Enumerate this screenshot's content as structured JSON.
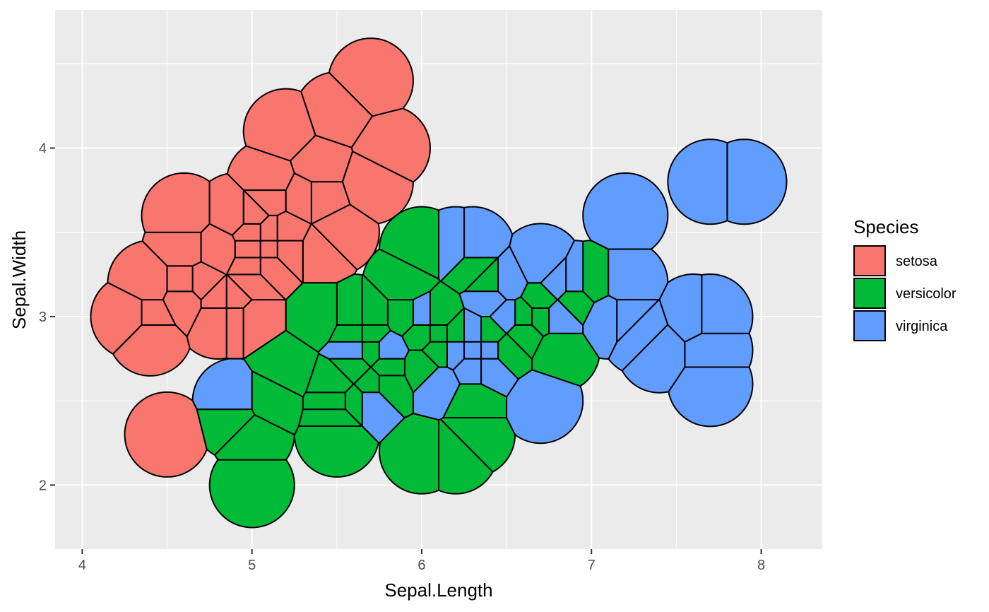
{
  "chart_data": {
    "type": "voronoi",
    "title": "",
    "xlabel": "Sepal.Length",
    "ylabel": "Sepal.Width",
    "xlim": [
      3.84,
      8.36
    ],
    "ylim": [
      1.62,
      4.82
    ],
    "x_ticks": [
      4,
      5,
      6,
      7,
      8
    ],
    "x_tick_labels": [
      "4",
      "5",
      "6",
      "7",
      "8"
    ],
    "y_ticks": [
      2,
      3,
      4
    ],
    "y_tick_labels": [
      "2",
      "3",
      "4"
    ],
    "grid": true,
    "cell_radius": 0.25,
    "legend": {
      "title": "Species",
      "position": "right",
      "entries": [
        {
          "label": "setosa",
          "color": "#F8766D"
        },
        {
          "label": "versicolor",
          "color": "#00BA38"
        },
        {
          "label": "virginica",
          "color": "#619CFF"
        }
      ]
    },
    "series": [
      {
        "name": "setosa",
        "color": "#F8766D",
        "points": [
          [
            5.1,
            3.5
          ],
          [
            4.9,
            3.0
          ],
          [
            4.7,
            3.2
          ],
          [
            4.6,
            3.1
          ],
          [
            5.0,
            3.6
          ],
          [
            5.4,
            3.9
          ],
          [
            4.6,
            3.4
          ],
          [
            5.0,
            3.4
          ],
          [
            4.4,
            2.9
          ],
          [
            4.9,
            3.1
          ],
          [
            5.4,
            3.7
          ],
          [
            4.8,
            3.4
          ],
          [
            4.8,
            3.0
          ],
          [
            4.3,
            3.0
          ],
          [
            5.8,
            4.0
          ],
          [
            5.7,
            4.4
          ],
          [
            5.4,
            3.9
          ],
          [
            5.1,
            3.5
          ],
          [
            5.7,
            3.8
          ],
          [
            5.1,
            3.8
          ],
          [
            5.4,
            3.4
          ],
          [
            5.1,
            3.7
          ],
          [
            4.6,
            3.6
          ],
          [
            5.1,
            3.3
          ],
          [
            4.8,
            3.4
          ],
          [
            5.0,
            3.0
          ],
          [
            5.0,
            3.4
          ],
          [
            5.2,
            3.5
          ],
          [
            5.2,
            3.4
          ],
          [
            4.7,
            3.2
          ],
          [
            4.8,
            3.1
          ],
          [
            5.4,
            3.4
          ],
          [
            5.2,
            4.1
          ],
          [
            5.5,
            4.2
          ],
          [
            4.9,
            3.1
          ],
          [
            5.0,
            3.2
          ],
          [
            5.5,
            3.5
          ],
          [
            4.9,
            3.6
          ],
          [
            4.4,
            3.0
          ],
          [
            5.1,
            3.4
          ],
          [
            5.0,
            3.5
          ],
          [
            4.5,
            2.3
          ],
          [
            4.4,
            3.2
          ],
          [
            5.0,
            3.5
          ],
          [
            5.1,
            3.8
          ],
          [
            4.8,
            3.0
          ],
          [
            5.1,
            3.8
          ],
          [
            4.6,
            3.2
          ],
          [
            5.3,
            3.7
          ],
          [
            5.0,
            3.3
          ]
        ]
      },
      {
        "name": "versicolor",
        "color": "#00BA38",
        "points": [
          [
            7.0,
            3.2
          ],
          [
            6.4,
            3.2
          ],
          [
            6.9,
            3.1
          ],
          [
            5.5,
            2.3
          ],
          [
            6.5,
            2.8
          ],
          [
            5.7,
            2.8
          ],
          [
            6.3,
            3.3
          ],
          [
            4.9,
            2.4
          ],
          [
            6.6,
            2.9
          ],
          [
            5.2,
            2.7
          ],
          [
            5.0,
            2.0
          ],
          [
            5.9,
            3.0
          ],
          [
            6.0,
            2.2
          ],
          [
            6.1,
            2.9
          ],
          [
            5.6,
            2.9
          ],
          [
            6.7,
            3.1
          ],
          [
            5.6,
            3.0
          ],
          [
            5.8,
            2.7
          ],
          [
            6.2,
            2.2
          ],
          [
            5.6,
            2.5
          ],
          [
            5.9,
            3.2
          ],
          [
            6.1,
            2.8
          ],
          [
            6.3,
            2.5
          ],
          [
            6.1,
            2.8
          ],
          [
            6.4,
            2.9
          ],
          [
            6.6,
            3.0
          ],
          [
            6.8,
            2.8
          ],
          [
            6.7,
            3.0
          ],
          [
            6.0,
            2.9
          ],
          [
            5.7,
            2.6
          ],
          [
            5.5,
            2.4
          ],
          [
            5.5,
            2.4
          ],
          [
            5.8,
            2.7
          ],
          [
            6.0,
            2.7
          ],
          [
            5.4,
            3.0
          ],
          [
            6.0,
            3.4
          ],
          [
            6.7,
            3.1
          ],
          [
            6.3,
            2.3
          ],
          [
            5.6,
            3.0
          ],
          [
            5.5,
            2.5
          ],
          [
            5.5,
            2.6
          ],
          [
            6.1,
            3.0
          ],
          [
            5.8,
            2.6
          ],
          [
            5.0,
            2.3
          ],
          [
            5.6,
            2.7
          ],
          [
            5.7,
            3.0
          ],
          [
            5.7,
            2.9
          ],
          [
            6.2,
            2.9
          ],
          [
            5.1,
            2.5
          ],
          [
            5.7,
            2.8
          ]
        ]
      },
      {
        "name": "virginica",
        "color": "#619CFF",
        "points": [
          [
            6.3,
            3.3
          ],
          [
            5.8,
            2.7
          ],
          [
            7.1,
            3.0
          ],
          [
            6.3,
            2.9
          ],
          [
            6.5,
            3.0
          ],
          [
            7.6,
            3.0
          ],
          [
            4.9,
            2.5
          ],
          [
            7.3,
            2.9
          ],
          [
            6.7,
            2.5
          ],
          [
            7.2,
            3.6
          ],
          [
            6.5,
            3.2
          ],
          [
            6.4,
            2.7
          ],
          [
            6.8,
            3.0
          ],
          [
            5.7,
            2.5
          ],
          [
            5.8,
            2.8
          ],
          [
            6.4,
            3.2
          ],
          [
            6.5,
            3.0
          ],
          [
            7.7,
            3.8
          ],
          [
            7.7,
            2.6
          ],
          [
            6.0,
            2.2
          ],
          [
            6.9,
            3.2
          ],
          [
            5.6,
            2.8
          ],
          [
            7.7,
            2.8
          ],
          [
            6.3,
            2.7
          ],
          [
            6.7,
            3.3
          ],
          [
            7.2,
            3.2
          ],
          [
            6.2,
            2.8
          ],
          [
            6.1,
            3.0
          ],
          [
            6.4,
            2.8
          ],
          [
            7.2,
            3.0
          ],
          [
            7.4,
            2.8
          ],
          [
            7.9,
            3.8
          ],
          [
            6.4,
            2.8
          ],
          [
            6.3,
            2.8
          ],
          [
            6.1,
            2.6
          ],
          [
            7.7,
            3.0
          ],
          [
            6.3,
            3.4
          ],
          [
            6.4,
            3.1
          ],
          [
            6.0,
            3.0
          ],
          [
            6.9,
            3.1
          ],
          [
            6.7,
            3.1
          ],
          [
            6.9,
            3.1
          ],
          [
            5.8,
            2.7
          ],
          [
            6.8,
            3.2
          ],
          [
            6.7,
            3.3
          ],
          [
            6.7,
            3.0
          ],
          [
            6.3,
            2.5
          ],
          [
            6.5,
            3.0
          ],
          [
            6.2,
            3.4
          ],
          [
            5.9,
            3.0
          ]
        ]
      }
    ]
  }
}
